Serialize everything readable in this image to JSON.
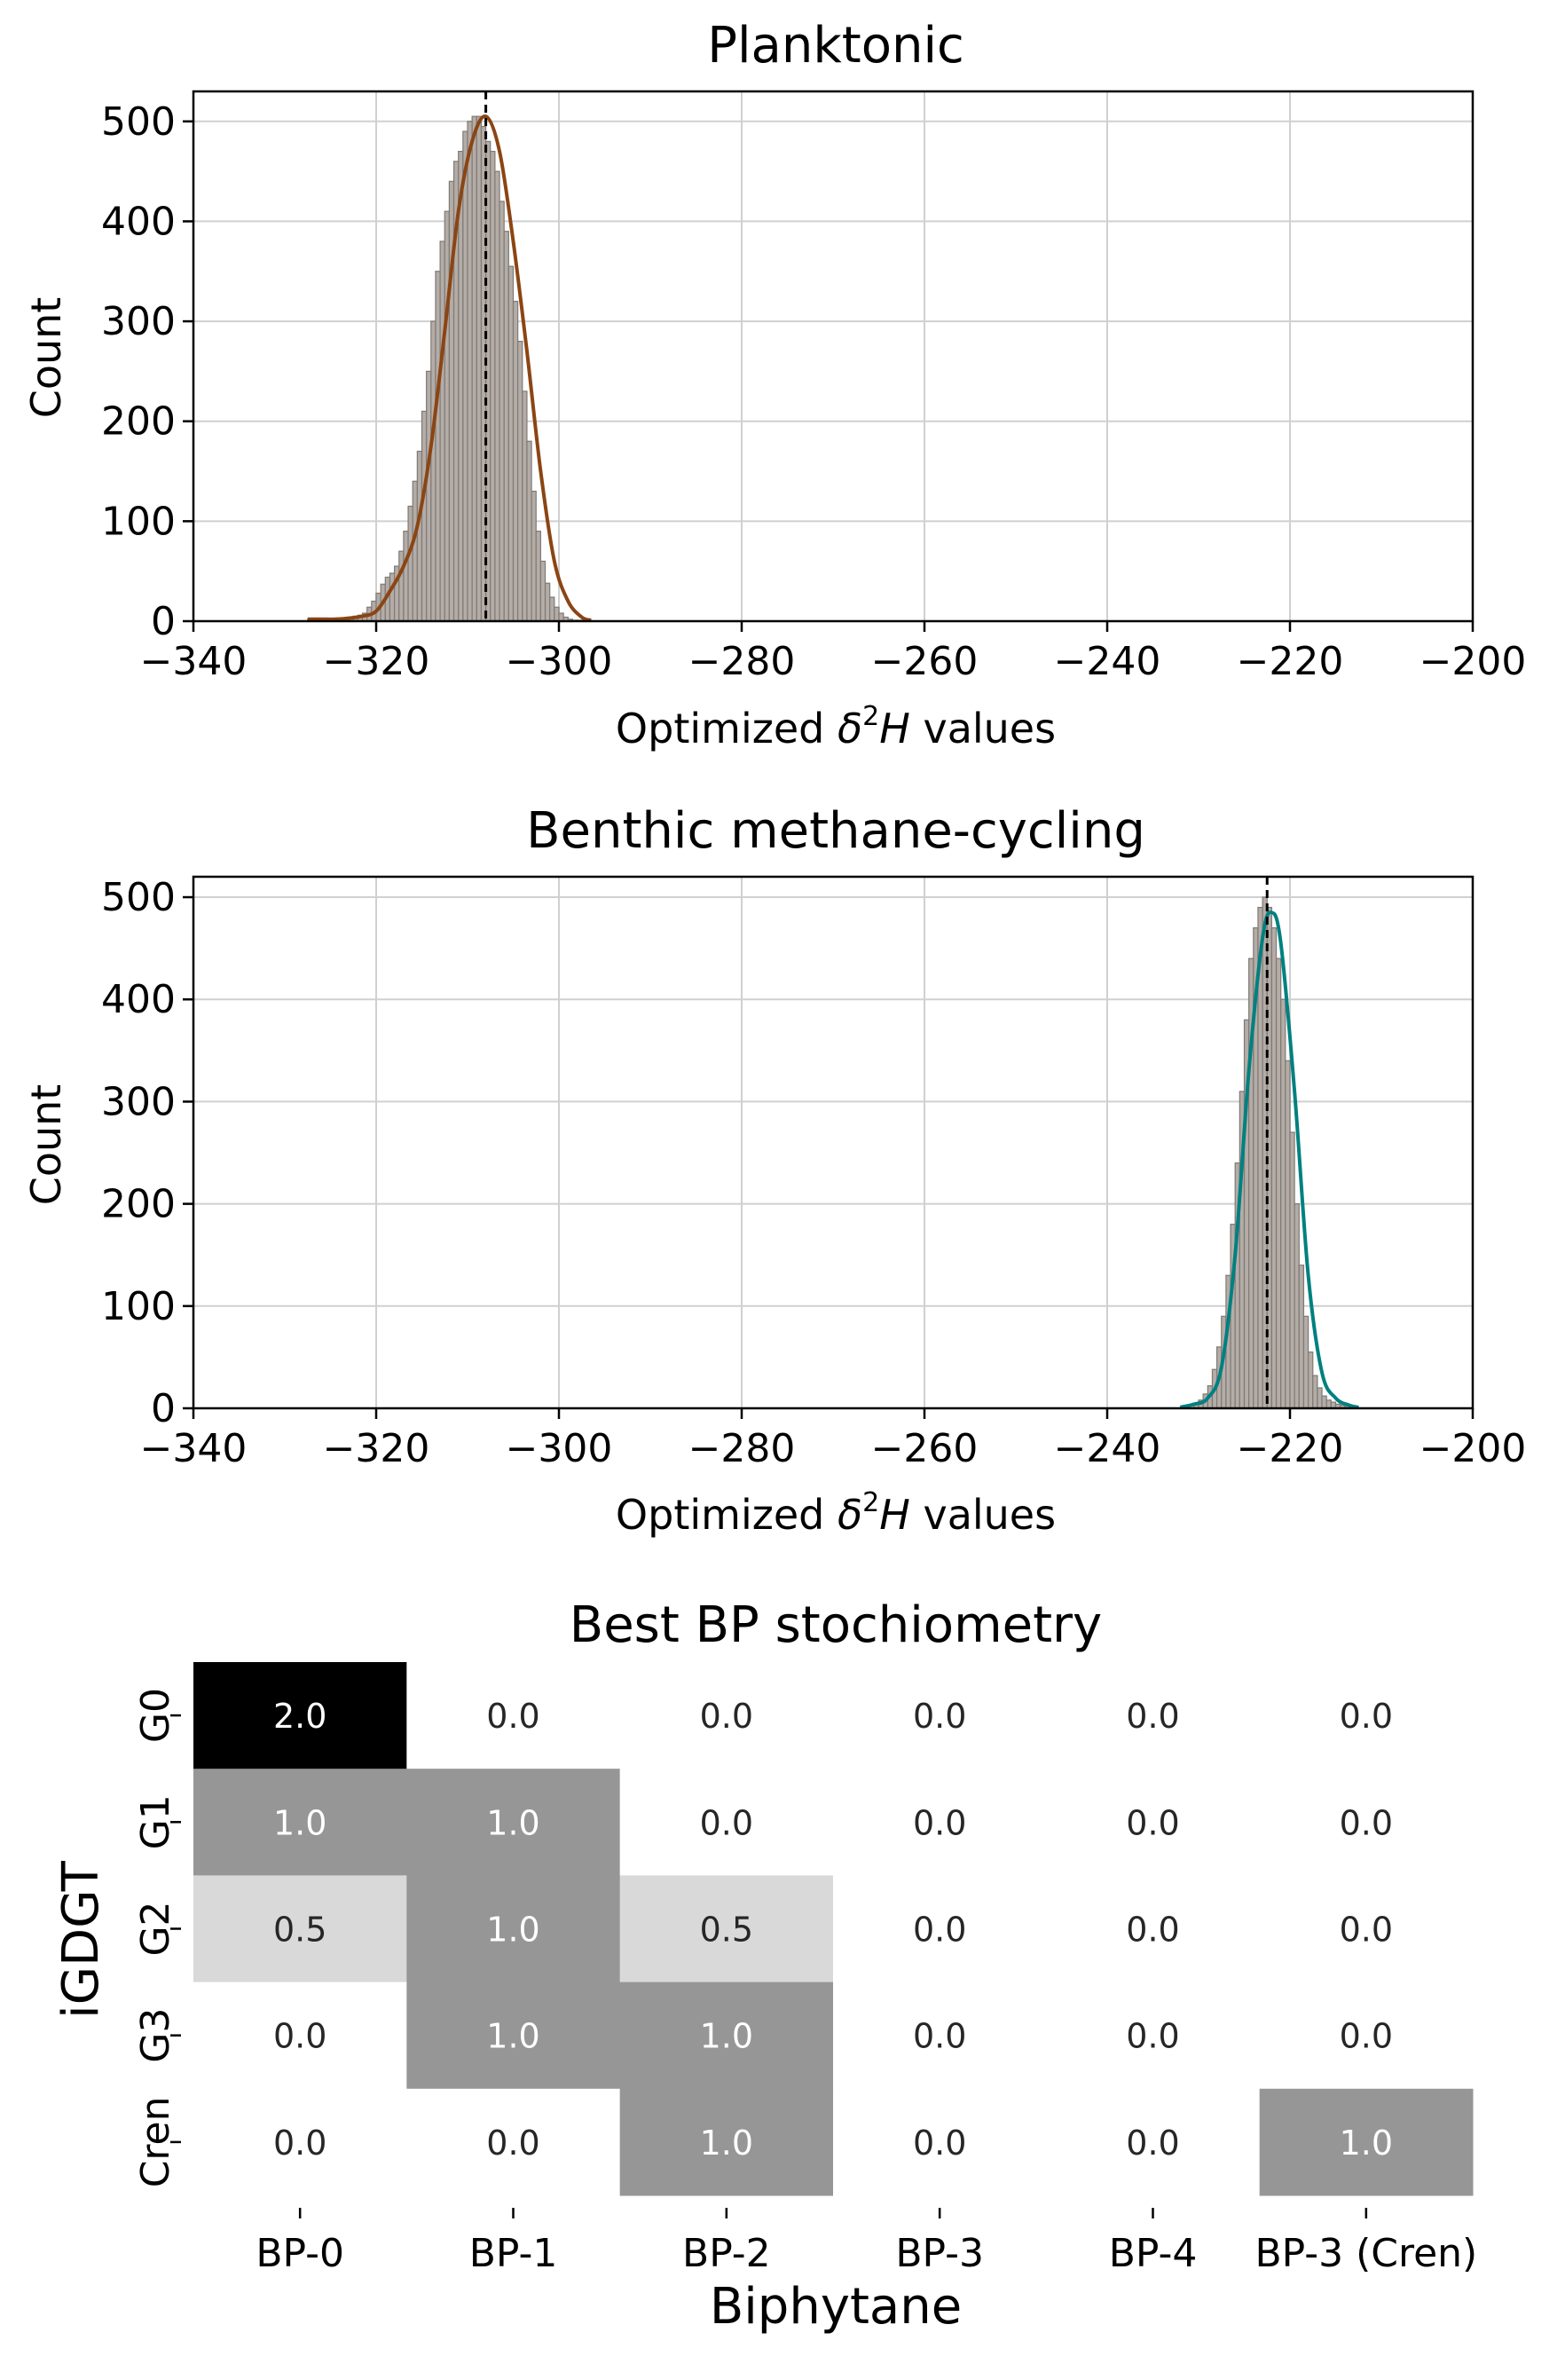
{
  "chart_data": [
    {
      "type": "histogram",
      "title": "Planktonic",
      "xlabel": "Optimized δ²H values",
      "xlabel_parts": {
        "pre": "Optimized ",
        "delta": "δ",
        "sup": "2",
        "H": "H",
        "post": " values"
      },
      "ylabel": "Count",
      "xlim": [
        -340,
        -200
      ],
      "ylim": [
        0,
        530
      ],
      "xticks": [
        "−340",
        "−320",
        "−300",
        "−280",
        "−260",
        "−240",
        "−220",
        "−200"
      ],
      "xtick_values": [
        -340,
        -320,
        -300,
        -280,
        -260,
        -240,
        -220,
        -200
      ],
      "yticks": [
        "0",
        "100",
        "200",
        "300",
        "400",
        "500"
      ],
      "ytick_values": [
        0,
        100,
        200,
        300,
        400,
        500
      ],
      "grid": true,
      "bins_x": [
        -327.25,
        -326.75,
        -326.25,
        -325.75,
        -325.25,
        -324.75,
        -324.25,
        -323.75,
        -323.25,
        -322.75,
        -322.25,
        -321.75,
        -321.25,
        -320.75,
        -320.25,
        -319.75,
        -319.25,
        -318.75,
        -318.25,
        -317.75,
        -317.25,
        -316.75,
        -316.25,
        -315.75,
        -315.25,
        -314.75,
        -314.25,
        -313.75,
        -313.25,
        -312.75,
        -312.25,
        -311.75,
        -311.25,
        -310.75,
        -310.25,
        -309.75,
        -309.25,
        -308.75,
        -308.25,
        -307.75,
        -307.25,
        -306.75,
        -306.25,
        -305.75,
        -305.25,
        -304.75,
        -304.25,
        -303.75,
        -303.25,
        -302.75,
        -302.25,
        -301.75,
        -301.25,
        -300.75,
        -300.25,
        -299.75,
        -299.25,
        -298.75,
        -298.25,
        -297.75,
        -297.25,
        -296.75
      ],
      "bin_width": 0.5,
      "counts": [
        2,
        2,
        2,
        2,
        2,
        2,
        2,
        3,
        3,
        4,
        5,
        6,
        8,
        14,
        20,
        28,
        37,
        44,
        48,
        55,
        70,
        90,
        115,
        140,
        170,
        210,
        250,
        300,
        350,
        380,
        410,
        440,
        460,
        470,
        490,
        500,
        505,
        505,
        495,
        480,
        470,
        450,
        420,
        390,
        355,
        320,
        280,
        230,
        180,
        130,
        90,
        60,
        38,
        24,
        14,
        8,
        4,
        2,
        1,
        1,
        1,
        1
      ],
      "kde_x": [
        -327.5,
        -326,
        -324.5,
        -323,
        -321.5,
        -320,
        -318.5,
        -317,
        -315.5,
        -314,
        -312.5,
        -311,
        -309.5,
        -308,
        -306.5,
        -305,
        -303.5,
        -302,
        -300.5,
        -299,
        -297.5,
        -296.5
      ],
      "kde_y": [
        2,
        2,
        2,
        3,
        5,
        10,
        30,
        55,
        95,
        175,
        290,
        410,
        480,
        505,
        470,
        380,
        270,
        150,
        60,
        20,
        4,
        1
      ],
      "kde_color": "#8b4513",
      "bar_color": "#b4aca6",
      "vline": -308
    },
    {
      "type": "histogram",
      "title": "Benthic methane-cycling",
      "xlabel": "Optimized δ²H values",
      "xlabel_parts": {
        "pre": "Optimized ",
        "delta": "δ",
        "sup": "2",
        "H": "H",
        "post": " values"
      },
      "ylabel": "Count",
      "xlim": [
        -340,
        -200
      ],
      "ylim": [
        0,
        520
      ],
      "xticks": [
        "−340",
        "−320",
        "−300",
        "−280",
        "−260",
        "−240",
        "−220",
        "−200"
      ],
      "xtick_values": [
        -340,
        -320,
        -300,
        -280,
        -260,
        -240,
        -220,
        -200
      ],
      "yticks": [
        "0",
        "100",
        "200",
        "300",
        "400",
        "500"
      ],
      "ytick_values": [
        0,
        100,
        200,
        300,
        400,
        500
      ],
      "grid": true,
      "bins_x": [
        -231.75,
        -231.25,
        -230.75,
        -230.25,
        -229.75,
        -229.25,
        -228.75,
        -228.25,
        -227.75,
        -227.25,
        -226.75,
        -226.25,
        -225.75,
        -225.25,
        -224.75,
        -224.25,
        -223.75,
        -223.25,
        -222.75,
        -222.25,
        -221.75,
        -221.25,
        -220.75,
        -220.25,
        -219.75,
        -219.25,
        -218.75,
        -218.25,
        -217.75,
        -217.25,
        -216.75,
        -216.25,
        -215.75,
        -215.25,
        -214.75,
        -214.25,
        -213.75,
        -213.25,
        -212.75
      ],
      "bin_width": 0.5,
      "counts": [
        1,
        2,
        3,
        5,
        8,
        14,
        22,
        38,
        60,
        90,
        130,
        180,
        240,
        310,
        380,
        440,
        470,
        490,
        500,
        490,
        470,
        440,
        400,
        340,
        270,
        200,
        140,
        90,
        55,
        32,
        20,
        12,
        8,
        6,
        4,
        3,
        2,
        1,
        1
      ],
      "kde_x": [
        -232,
        -230.5,
        -229,
        -227.5,
        -226,
        -224.5,
        -223,
        -222,
        -221,
        -219.5,
        -218,
        -216.5,
        -215,
        -213.5,
        -212.5
      ],
      "kde_y": [
        1,
        4,
        10,
        40,
        150,
        330,
        460,
        485,
        455,
        310,
        130,
        35,
        10,
        3,
        1
      ],
      "kde_color": "#008080",
      "bar_color": "#b4aca6",
      "vline": -222.5
    },
    {
      "type": "heatmap",
      "title": "Best BP stochiometry",
      "xlabel": "Biphytane",
      "ylabel": "iGDGT",
      "columns": [
        "BP-0",
        "BP-1",
        "BP-2",
        "BP-3",
        "BP-4",
        "BP-3 (Cren)"
      ],
      "rows": [
        "G0",
        "G1",
        "G2",
        "G3",
        "Cren"
      ],
      "values": [
        [
          2.0,
          0.0,
          0.0,
          0.0,
          0.0,
          0.0
        ],
        [
          1.0,
          1.0,
          0.0,
          0.0,
          0.0,
          0.0
        ],
        [
          0.5,
          1.0,
          0.5,
          0.0,
          0.0,
          0.0
        ],
        [
          0.0,
          1.0,
          1.0,
          0.0,
          0.0,
          0.0
        ],
        [
          0.0,
          0.0,
          1.0,
          0.0,
          0.0,
          1.0
        ]
      ],
      "labels": [
        [
          "2.0",
          "0.0",
          "0.0",
          "0.0",
          "0.0",
          "0.0"
        ],
        [
          "1.0",
          "1.0",
          "0.0",
          "0.0",
          "0.0",
          "0.0"
        ],
        [
          "0.5",
          "1.0",
          "0.5",
          "0.0",
          "0.0",
          "0.0"
        ],
        [
          "0.0",
          "1.0",
          "1.0",
          "0.0",
          "0.0",
          "0.0"
        ],
        [
          "0.0",
          "0.0",
          "1.0",
          "0.0",
          "0.0",
          "1.0"
        ]
      ],
      "colormap": "greys"
    }
  ]
}
